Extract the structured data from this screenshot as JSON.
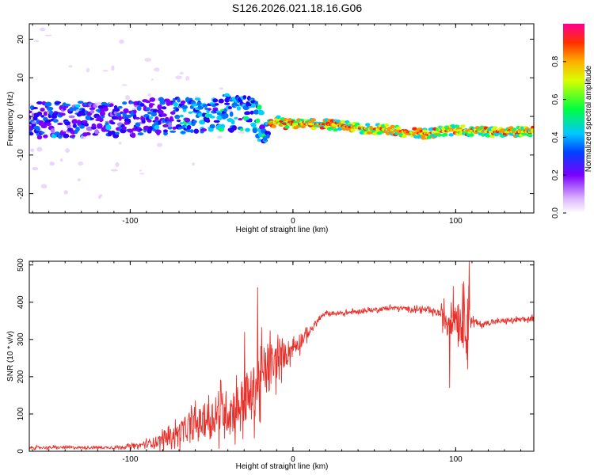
{
  "title": "S126.2026.021.18.16.G06",
  "colors": {
    "snr_line": "#e8302a",
    "axis": "#000000"
  },
  "chart_data": [
    {
      "type": "heatmap",
      "name": "spectrogram",
      "xlabel": "Height of straight line (km)",
      "ylabel": "Frequency (Hz)",
      "xlim": [
        -162,
        148
      ],
      "ylim": [
        -25,
        24
      ],
      "xticks": [
        -100,
        0,
        100
      ],
      "yticks": [
        -20,
        -10,
        0,
        10,
        20
      ],
      "ridge_center_hz": [
        [
          -160,
          -1
        ],
        [
          -100,
          -0.5
        ],
        [
          -60,
          0.5
        ],
        [
          -40,
          1
        ],
        [
          -25,
          0.5
        ],
        [
          -18,
          -3
        ],
        [
          -12,
          -1.5
        ],
        [
          -8,
          -1
        ],
        [
          -5,
          -2
        ],
        [
          0,
          -2
        ],
        [
          20,
          -2
        ],
        [
          40,
          -3
        ],
        [
          60,
          -3.5
        ],
        [
          80,
          -4.5
        ],
        [
          90,
          -4
        ],
        [
          100,
          -3.5
        ],
        [
          120,
          -4
        ],
        [
          148,
          -4
        ]
      ],
      "colorbar": {
        "label": "Normalized spectral amplitude",
        "range": [
          0,
          1
        ],
        "ticks": [
          "0.0",
          "0.2",
          "0.4",
          "0.6",
          "0.8"
        ]
      }
    },
    {
      "type": "line",
      "name": "snr",
      "xlabel": "Height of straight line (km)",
      "ylabel": "SNR (10 * v/v)",
      "xlim": [
        -162,
        148
      ],
      "ylim": [
        0,
        510
      ],
      "xticks": [
        -100,
        0,
        100
      ],
      "yticks": [
        0,
        100,
        200,
        300,
        400,
        500
      ],
      "envelope": {
        "x": [
          -162,
          -110,
          -95,
          -85,
          -75,
          -65,
          -55,
          -45,
          -35,
          -25,
          -20,
          -15,
          -10,
          -5,
          0,
          5,
          10,
          15,
          20,
          30,
          40,
          60,
          80,
          90,
          95,
          100,
          105,
          108,
          110,
          115,
          120,
          130,
          148
        ],
        "mean": [
          10,
          10,
          15,
          25,
          40,
          60,
          80,
          100,
          120,
          150,
          200,
          220,
          240,
          260,
          280,
          300,
          320,
          350,
          370,
          370,
          375,
          385,
          380,
          370,
          350,
          370,
          340,
          380,
          350,
          340,
          345,
          350,
          355
        ],
        "amp": [
          6,
          6,
          10,
          25,
          40,
          60,
          80,
          100,
          110,
          130,
          150,
          120,
          90,
          60,
          50,
          40,
          20,
          12,
          10,
          10,
          10,
          10,
          12,
          15,
          90,
          80,
          120,
          130,
          20,
          12,
          12,
          12,
          12
        ]
      },
      "spikes": [
        {
          "x": -22,
          "y": 440
        },
        {
          "x": -30,
          "y": 320
        },
        {
          "x": 96,
          "y": 170
        },
        {
          "x": 97,
          "y": 400
        },
        {
          "x": 104,
          "y": 450
        },
        {
          "x": 108,
          "y": 510
        },
        {
          "x": 107,
          "y": 220
        }
      ]
    }
  ]
}
